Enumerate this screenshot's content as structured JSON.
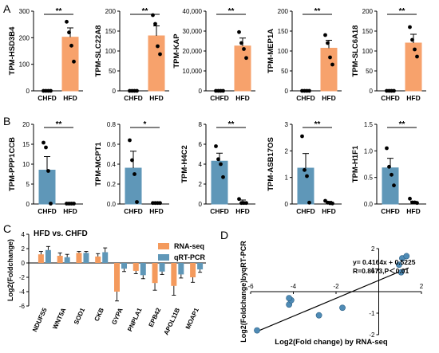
{
  "panels": {
    "A": "A",
    "B": "B",
    "C": "C",
    "D": "D"
  },
  "colors": {
    "hfd_bar": "#f7a26c",
    "chfd_bar_b": "#5f97b8",
    "rnaseq": "#f49a5d",
    "qrtpcr": "#5f97b8",
    "point_d": "#4f8bb5"
  },
  "chart_data": [
    {
      "type": "bar",
      "panel": "A",
      "ylabel": "TPM-HSD3B4",
      "categories": [
        "CHFD",
        "HFD"
      ],
      "values": [
        0,
        202
      ],
      "errors": [
        0,
        35
      ],
      "ylim": [
        0,
        300
      ],
      "yticks": [
        "0",
        "100",
        "200",
        "300"
      ],
      "points": [
        [
          0,
          0,
          0,
          0
        ],
        [
          260,
          220,
          170,
          110
        ]
      ],
      "significance": "**"
    },
    {
      "type": "bar",
      "panel": "A",
      "ylabel": "TPM-SLC22A8",
      "categories": [
        "CHFD",
        "HFD"
      ],
      "values": [
        0,
        138
      ],
      "errors": [
        0,
        25
      ],
      "ylim": [
        0,
        200
      ],
      "yticks": [
        "0",
        "50",
        "100",
        "150",
        "200"
      ],
      "points": [
        [
          0,
          0,
          0,
          0
        ],
        [
          190,
          168,
          112,
          92
        ]
      ],
      "significance": "**"
    },
    {
      "type": "bar",
      "panel": "A",
      "ylabel": "TPM-KAP",
      "categories": [
        "CHFD",
        "HFD"
      ],
      "values": [
        0,
        22500
      ],
      "errors": [
        0,
        4000
      ],
      "ylim": [
        0,
        40000
      ],
      "yticks": [
        "0",
        "10,000",
        "20,000",
        "30,000",
        "40,000"
      ],
      "points": [
        [
          0,
          0,
          0,
          0
        ],
        [
          29500,
          24000,
          21000,
          16500
        ]
      ],
      "significance": "**"
    },
    {
      "type": "bar",
      "panel": "A",
      "ylabel": "TPM-MEP1A",
      "categories": [
        "CHFD",
        "HFD"
      ],
      "values": [
        0,
        107
      ],
      "errors": [
        0,
        20
      ],
      "ylim": [
        0,
        200
      ],
      "yticks": [
        "0",
        "50",
        "100",
        "150",
        "200"
      ],
      "points": [
        [
          0,
          0,
          0,
          0
        ],
        [
          140,
          120,
          84,
          66
        ]
      ],
      "significance": "**"
    },
    {
      "type": "bar",
      "panel": "A",
      "ylabel": "TPM-SLC6A18",
      "categories": [
        "CHFD",
        "HFD"
      ],
      "values": [
        0,
        120
      ],
      "errors": [
        0,
        22
      ],
      "ylim": [
        0,
        200
      ],
      "yticks": [
        "0",
        "50",
        "100",
        "150",
        "200"
      ],
      "points": [
        [
          0,
          0,
          0,
          0
        ],
        [
          160,
          128,
          104,
          86
        ]
      ],
      "significance": "**"
    },
    {
      "type": "bar",
      "panel": "B",
      "ylabel": "TPM-PPP1CCB",
      "categories": [
        "CHFD",
        "HFD"
      ],
      "values": [
        8.5,
        0.1
      ],
      "errors": [
        3.4,
        0.1
      ],
      "ylim": [
        0,
        20
      ],
      "yticks": [
        "0",
        "5",
        "10",
        "15",
        "20"
      ],
      "points": [
        [
          15.4,
          14.2,
          8.3,
          0.1
        ],
        [
          0.1,
          0.1,
          0.1,
          0.1
        ]
      ],
      "significance": "**"
    },
    {
      "type": "bar",
      "panel": "B",
      "ylabel": "TPM-MCPT1",
      "categories": [
        "CHFD",
        "HFD"
      ],
      "values": [
        0.36,
        0.01
      ],
      "errors": [
        0.17,
        0.01
      ],
      "ylim": [
        0,
        0.8
      ],
      "yticks": [
        "0.0",
        "0.2",
        "0.4",
        "0.6",
        "0.8"
      ],
      "points": [
        [
          0.64,
          0.44,
          0.3,
          0.02
        ],
        [
          0.01,
          0.01,
          0.01,
          0.01
        ]
      ],
      "significance": "*"
    },
    {
      "type": "bar",
      "panel": "B",
      "ylabel": "TPM-H4C2",
      "categories": [
        "CHFD",
        "HFD"
      ],
      "values": [
        4.3,
        0.2
      ],
      "errors": [
        0.8,
        0.2
      ],
      "ylim": [
        0,
        8
      ],
      "yticks": [
        "0",
        "2",
        "4",
        "6",
        "8"
      ],
      "points": [
        [
          5.8,
          4.5,
          4.0,
          2.7
        ],
        [
          0.5,
          0.1,
          0.1,
          0.1
        ]
      ],
      "significance": "**"
    },
    {
      "type": "bar",
      "panel": "B",
      "ylabel": "TPM-ASB17OS",
      "categories": [
        "CHFD",
        "HFD"
      ],
      "values": [
        1.35,
        0.05
      ],
      "errors": [
        0.55,
        0.05
      ],
      "ylim": [
        0,
        3
      ],
      "yticks": [
        "0",
        "1",
        "2",
        "3"
      ],
      "points": [
        [
          2.55,
          1.28,
          1.05,
          0.05
        ],
        [
          0.12,
          0.05,
          0.03,
          0.02
        ]
      ],
      "significance": "**"
    },
    {
      "type": "bar",
      "panel": "B",
      "ylabel": "TPM-H1F1",
      "categories": [
        "CHFD",
        "HFD"
      ],
      "values": [
        0.68,
        0.03
      ],
      "errors": [
        0.18,
        0.02
      ],
      "ylim": [
        0,
        1.5
      ],
      "yticks": [
        "0.0",
        "0.5",
        "1.0",
        "1.5"
      ],
      "points": [
        [
          1.05,
          0.7,
          0.55,
          0.35
        ],
        [
          0.1,
          0.03,
          0.03,
          0.02
        ]
      ],
      "significance": "**"
    },
    {
      "type": "bar",
      "panel": "C",
      "title": "HFD vs. CHFD",
      "ylabel": "Log2(Foldchange)",
      "categories": [
        "NDUFS5",
        "WNT5A",
        "SOD1",
        "CKB",
        "GYPA",
        "PNPLA1",
        "EPB42",
        "APOL11B",
        "MOAP1"
      ],
      "ylim": [
        -6,
        4
      ],
      "yticks": [
        "-6",
        "-4",
        "-2",
        "0",
        "2",
        "4"
      ],
      "legend_position": "top-right",
      "series": [
        {
          "name": "RNA-seq",
          "values": [
            1.2,
            1.0,
            1.4,
            0.9,
            -4.0,
            -1.1,
            -2.8,
            -3.2,
            -2.0
          ],
          "errors": [
            0.4,
            0.4,
            0.2,
            0.4,
            1.3,
            0.4,
            1.0,
            1.3,
            0.7
          ]
        },
        {
          "name": "qRT-PCR",
          "values": [
            1.8,
            0.8,
            1.4,
            1.5,
            -0.8,
            -1.7,
            -1.2,
            -1.6,
            -0.9
          ],
          "errors": [
            0.5,
            0.4,
            0.2,
            0.6,
            0.4,
            0.5,
            0.4,
            0.5,
            0.4
          ]
        }
      ]
    },
    {
      "type": "scatter",
      "panel": "D",
      "xlabel": "Log2(Fold change) by RNA-seq",
      "ylabel": "Log2(Foldchange)byqRT-PCR",
      "xlim": [
        -6,
        2
      ],
      "ylim": [
        -2,
        2
      ],
      "xticks": [
        "-6",
        "-4",
        "-2",
        "2"
      ],
      "yticks": [
        "-2",
        "-1",
        "1",
        "2"
      ],
      "points": [
        [
          -4.2,
          -0.6
        ],
        [
          -4.1,
          -0.4
        ],
        [
          -4.2,
          -0.3
        ],
        [
          -5.7,
          -1.8
        ],
        [
          -2.8,
          -1.1
        ],
        [
          -1.7,
          -0.75
        ],
        [
          0.95,
          1.25
        ],
        [
          1.05,
          0.9
        ],
        [
          1.1,
          1.55
        ],
        [
          1.3,
          1.65
        ]
      ],
      "fit": {
        "slope": 0.4164,
        "intercept": 0.5225
      },
      "equation": "y= 0.4164x + 0.5225",
      "stats": "R=0.8673,P＜0.01"
    }
  ]
}
